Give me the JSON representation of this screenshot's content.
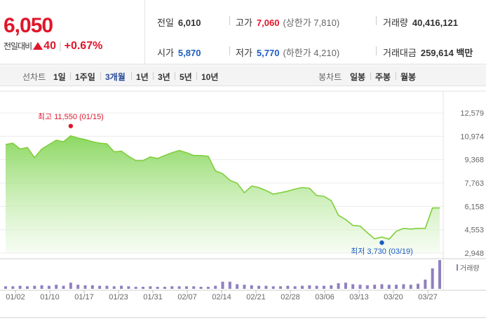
{
  "summary": {
    "price": "6,050",
    "change_label": "전일대비",
    "change_value": "40",
    "change_percent": "+0.67%",
    "prev_close": {
      "label": "전일",
      "value": "6,010"
    },
    "high": {
      "label": "고가",
      "value": "7,060",
      "sub": "(상한가 7,810)"
    },
    "volume": {
      "label": "거래량",
      "value": "40,416,121"
    },
    "open": {
      "label": "시가",
      "value": "5,870"
    },
    "low": {
      "label": "저가",
      "value": "5,770",
      "sub": "(하한가 4,210)"
    },
    "amount": {
      "label": "거래대금",
      "value": "259,614 백만"
    }
  },
  "tabs": {
    "line_label": "선차트",
    "line_tabs": [
      "1일",
      "1주일",
      "3개월",
      "1년",
      "3년",
      "5년",
      "10년"
    ],
    "active": "3개월",
    "candle_label": "봉차트",
    "candle_tabs": [
      "일봉",
      "주봉",
      "월봉"
    ]
  },
  "colors": {
    "up": "#e0162b",
    "down": "#1b5cc4",
    "line": "#7fcf3c",
    "volume": "#9080c0"
  },
  "chart_data": {
    "type": "area",
    "y_ticks": [
      "12,579",
      "10,974",
      "9,368",
      "7,763",
      "6,158",
      "4,553",
      "2,948"
    ],
    "ylim": [
      2948,
      12579
    ],
    "x_ticks": [
      "01/02",
      "01/10",
      "01/17",
      "01/23",
      "01/31",
      "02/07",
      "02/14",
      "02/21",
      "02/28",
      "03/06",
      "03/13",
      "03/20",
      "03/27"
    ],
    "max_label": "최고 11,550 (01/15)",
    "min_label": "최저 3,730 (03/19)",
    "max_index": 9,
    "min_index": 52,
    "prices": [
      10400,
      10500,
      10100,
      10200,
      9500,
      10100,
      10400,
      10700,
      10600,
      11000,
      10850,
      10750,
      10600,
      10500,
      10450,
      9900,
      9950,
      9600,
      9300,
      9300,
      9550,
      9450,
      9650,
      9850,
      10000,
      9850,
      9650,
      9650,
      9600,
      8600,
      8400,
      7950,
      7750,
      7100,
      7550,
      7450,
      7250,
      7000,
      7100,
      7200,
      7350,
      7450,
      7400,
      6900,
      6850,
      6550,
      5550,
      5250,
      4850,
      4800,
      4350,
      3930,
      4050,
      3900,
      4450,
      4650,
      4600,
      4650,
      4650,
      6050,
      6050
    ],
    "volume_label": "거래량",
    "volume": [
      0.5,
      0.5,
      0.6,
      0.5,
      0.6,
      0.7,
      0.6,
      0.8,
      0.6,
      1.2,
      0.8,
      0.7,
      0.7,
      0.6,
      0.6,
      0.5,
      0.6,
      0.5,
      0.4,
      0.4,
      0.5,
      0.4,
      0.4,
      0.5,
      0.5,
      0.5,
      0.5,
      0.4,
      0.4,
      0.6,
      1.4,
      1.4,
      0.9,
      0.8,
      0.7,
      0.6,
      0.6,
      0.5,
      0.5,
      0.6,
      0.5,
      0.6,
      0.7,
      0.6,
      0.6,
      0.7,
      1.1,
      1.2,
      0.9,
      0.8,
      0.7,
      0.8,
      0.9,
      0.8,
      0.8,
      0.9,
      0.8,
      1.0,
      1.8,
      4.0,
      5.6
    ]
  }
}
